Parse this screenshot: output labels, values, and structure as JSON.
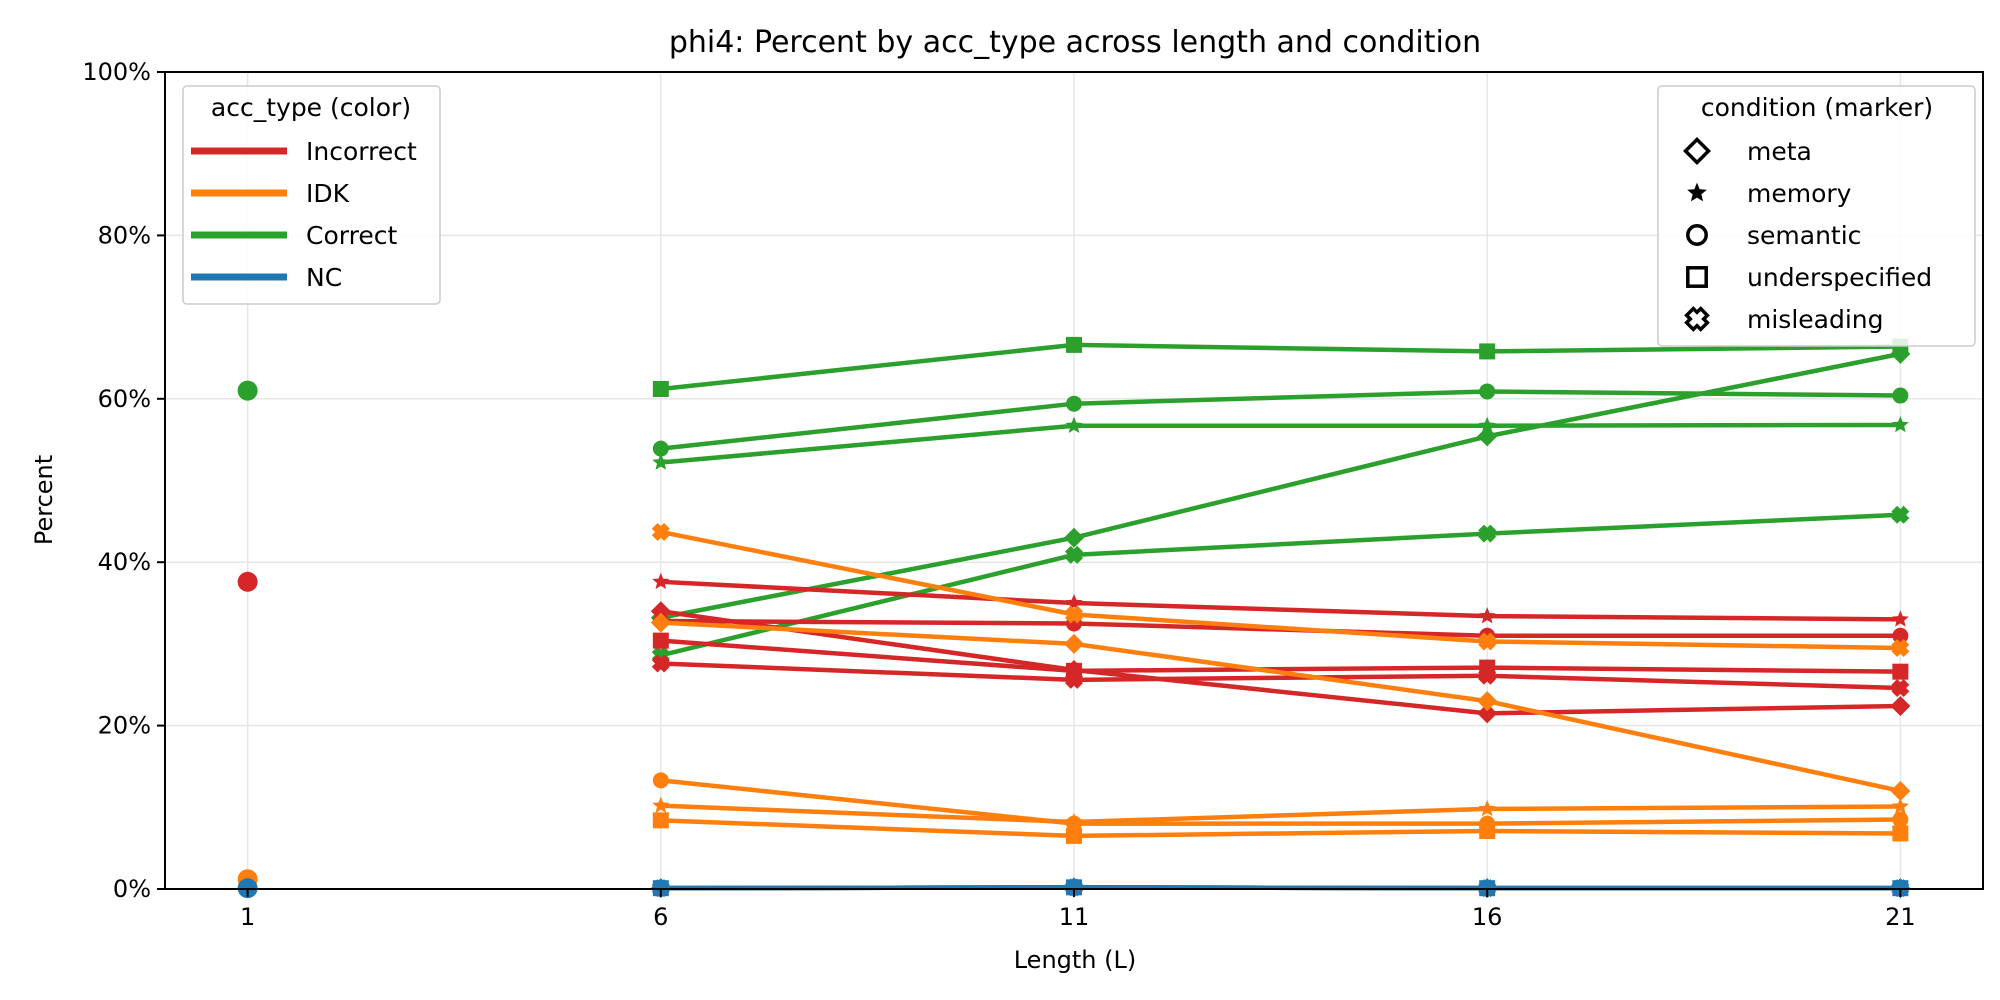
{
  "chart_data": {
    "type": "line",
    "title": "phi4: Percent by acc_type across length and condition",
    "xlabel": "Length (L)",
    "ylabel": "Percent",
    "x_ticks": [
      1,
      6,
      11,
      16,
      21
    ],
    "y_ticks": [
      0,
      20,
      40,
      60,
      80,
      100
    ],
    "y_tick_labels": [
      "0%",
      "20%",
      "40%",
      "60%",
      "80%",
      "100%"
    ],
    "xlim": [
      0,
      22
    ],
    "ylim": [
      0,
      100
    ],
    "grid": true,
    "legend_color": {
      "title": "acc_type (color)",
      "placement": "top-left",
      "entries": [
        {
          "label": "Incorrect",
          "color": "#d62728"
        },
        {
          "label": "IDK",
          "color": "#ff7f0e"
        },
        {
          "label": "Correct",
          "color": "#2ca02c"
        },
        {
          "label": "NC",
          "color": "#1f77b4"
        }
      ]
    },
    "legend_marker": {
      "title": "condition (marker)",
      "placement": "top-right",
      "entries": [
        {
          "label": "meta",
          "marker": "diamond"
        },
        {
          "label": "memory",
          "marker": "star"
        },
        {
          "label": "semantic",
          "marker": "circle"
        },
        {
          "label": "underspecified",
          "marker": "square"
        },
        {
          "label": "misleading",
          "marker": "x-filled"
        }
      ]
    },
    "single_points": [
      {
        "acc_type": "Correct",
        "condition": "semantic",
        "x": 1,
        "y": 61.0
      },
      {
        "acc_type": "Incorrect",
        "condition": "semantic",
        "x": 1,
        "y": 37.6
      },
      {
        "acc_type": "IDK",
        "condition": "semantic",
        "x": 1,
        "y": 1.2
      },
      {
        "acc_type": "NC",
        "condition": "semantic",
        "x": 1,
        "y": 0.1
      }
    ],
    "x": [
      6,
      11,
      16,
      21
    ],
    "series": [
      {
        "acc_type": "Correct",
        "condition": "underspecified",
        "values": [
          61.2,
          66.6,
          65.8,
          66.4
        ]
      },
      {
        "acc_type": "Correct",
        "condition": "semantic",
        "values": [
          53.9,
          59.4,
          60.9,
          60.4
        ]
      },
      {
        "acc_type": "Correct",
        "condition": "memory",
        "values": [
          52.2,
          56.7,
          56.7,
          56.8
        ]
      },
      {
        "acc_type": "Correct",
        "condition": "meta",
        "values": [
          33.2,
          43.0,
          55.4,
          65.5
        ]
      },
      {
        "acc_type": "Correct",
        "condition": "misleading",
        "values": [
          28.6,
          40.9,
          43.5,
          45.8
        ]
      },
      {
        "acc_type": "Incorrect",
        "condition": "memory",
        "values": [
          37.6,
          35.0,
          33.4,
          33.0
        ]
      },
      {
        "acc_type": "Incorrect",
        "condition": "meta",
        "values": [
          34.0,
          26.8,
          21.5,
          22.4
        ]
      },
      {
        "acc_type": "Incorrect",
        "condition": "semantic",
        "values": [
          32.8,
          32.5,
          31.0,
          31.0
        ]
      },
      {
        "acc_type": "Incorrect",
        "condition": "underspecified",
        "values": [
          30.4,
          26.7,
          27.1,
          26.6
        ]
      },
      {
        "acc_type": "Incorrect",
        "condition": "misleading",
        "values": [
          27.6,
          25.6,
          26.1,
          24.6
        ]
      },
      {
        "acc_type": "IDK",
        "condition": "misleading",
        "values": [
          43.7,
          33.6,
          30.3,
          29.5
        ]
      },
      {
        "acc_type": "IDK",
        "condition": "meta",
        "values": [
          32.6,
          30.0,
          23.0,
          12.0
        ]
      },
      {
        "acc_type": "IDK",
        "condition": "semantic",
        "values": [
          13.3,
          8.0,
          8.0,
          8.5
        ]
      },
      {
        "acc_type": "IDK",
        "condition": "memory",
        "values": [
          10.2,
          8.2,
          9.8,
          10.1
        ]
      },
      {
        "acc_type": "IDK",
        "condition": "underspecified",
        "values": [
          8.4,
          6.5,
          7.1,
          6.8
        ]
      },
      {
        "acc_type": "NC",
        "condition": "meta",
        "values": [
          0.1,
          0.2,
          0.1,
          0.1
        ]
      },
      {
        "acc_type": "NC",
        "condition": "memory",
        "values": [
          0.1,
          0.2,
          0.1,
          0.1
        ]
      },
      {
        "acc_type": "NC",
        "condition": "semantic",
        "values": [
          0.1,
          0.2,
          0.1,
          0.1
        ]
      },
      {
        "acc_type": "NC",
        "condition": "underspecified",
        "values": [
          0.1,
          0.2,
          0.1,
          0.1
        ]
      },
      {
        "acc_type": "NC",
        "condition": "misleading",
        "values": [
          0.1,
          0.2,
          0.1,
          0.1
        ]
      }
    ]
  }
}
